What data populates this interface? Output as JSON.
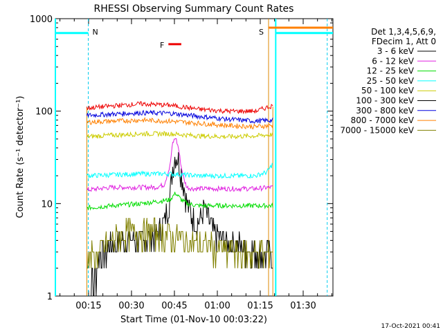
{
  "chart_data": {
    "type": "line",
    "title": "RHESSI Observing Summary Count Rates",
    "xlabel": "Start Time (01-Nov-10 00:03:22)",
    "ylabel": "Count Rate (s⁻¹ detector⁻¹)",
    "x_unit": "minutes after 00:03:22",
    "xlim": [
      0,
      97
    ],
    "ylim": [
      1,
      1000
    ],
    "yscale": "log",
    "x_tick_labels": [
      "00:15",
      "00:30",
      "00:45",
      "01:00",
      "01:15",
      "01:30"
    ],
    "x_tick_values": [
      11.6,
      26.6,
      41.6,
      56.6,
      71.6,
      86.6
    ],
    "y_tick_labels": [
      "1",
      "10",
      "100",
      "1000"
    ],
    "y_tick_values": [
      1,
      10,
      100,
      1000
    ],
    "legend_header": [
      "Det 1,3,4,5,6,9,",
      "FDecim 1, Att 0"
    ],
    "legend_position": "right",
    "series": [
      {
        "name": "3 - 6 keV",
        "color": "#000000",
        "x": [
          11,
          13,
          15,
          17,
          20,
          25,
          30,
          35,
          38,
          40,
          41,
          42,
          43,
          44,
          45,
          46,
          48,
          50,
          52,
          55,
          60,
          65,
          70,
          75,
          76
        ],
        "y": [
          1,
          1.5,
          2.5,
          3,
          3.5,
          4,
          4,
          4.5,
          6,
          12,
          25,
          35,
          30,
          22,
          15,
          10,
          7,
          6,
          9,
          5,
          4,
          3.5,
          3,
          2.8,
          2.8
        ]
      },
      {
        "name": "6 - 12 keV",
        "color": "#e020e0",
        "x": [
          11,
          15,
          20,
          25,
          30,
          35,
          38,
          40,
          41,
          42,
          43,
          44,
          45,
          46,
          48,
          50,
          55,
          60,
          65,
          70,
          75,
          76
        ],
        "y": [
          14,
          14.5,
          15,
          15,
          15,
          15,
          16,
          25,
          45,
          52,
          40,
          25,
          18,
          15,
          14.5,
          14.5,
          14.5,
          14.5,
          14.5,
          14.5,
          15,
          15
        ]
      },
      {
        "name": "12 - 25 keV",
        "color": "#00dd00",
        "x": [
          11,
          20,
          30,
          40,
          42,
          44,
          46,
          50,
          60,
          70,
          76
        ],
        "y": [
          9,
          9.5,
          10,
          11,
          13,
          11,
          10,
          9.5,
          9.5,
          9.5,
          9.5
        ]
      },
      {
        "name": "25 - 50 keV",
        "color": "#00ffff",
        "x": [
          11,
          20,
          30,
          40,
          50,
          60,
          70,
          74,
          76
        ],
        "y": [
          20,
          20.5,
          21,
          21,
          20,
          20,
          20,
          22,
          27
        ]
      },
      {
        "name": "50 - 100 keV",
        "color": "#cccc00",
        "x": [
          11,
          20,
          30,
          40,
          50,
          60,
          70,
          76
        ],
        "y": [
          53,
          55,
          57,
          57,
          54,
          53,
          54,
          56
        ]
      },
      {
        "name": "100 - 300 keV",
        "color": "#000000",
        "shown": false,
        "x": [],
        "y": []
      },
      {
        "name": "300 - 800 keV",
        "color": "#0000dd",
        "x": [
          11,
          20,
          30,
          40,
          50,
          60,
          70,
          76
        ],
        "y": [
          90,
          93,
          96,
          95,
          88,
          82,
          78,
          80
        ]
      },
      {
        "name": "800 - 7000 keV",
        "color": "#ff8000",
        "x": [
          11,
          20,
          30,
          40,
          50,
          60,
          70,
          76
        ],
        "y": [
          76,
          78,
          80,
          78,
          74,
          70,
          68,
          70
        ]
      },
      {
        "name": "7000 - 15000 keV",
        "color": "#808000",
        "x": [
          11,
          15,
          20,
          25,
          30,
          35,
          40,
          45,
          50,
          55,
          60,
          65,
          70,
          75,
          76
        ],
        "y": [
          2.5,
          3,
          4,
          5,
          5,
          5,
          4.5,
          4,
          3.5,
          3.5,
          3,
          3,
          3,
          3,
          3
        ]
      },
      {
        "name": "",
        "color": "#ee0000",
        "label_on_chart": "",
        "x": [
          11,
          20,
          30,
          40,
          50,
          60,
          70,
          76
        ],
        "y": [
          108,
          114,
          120,
          116,
          105,
          100,
          100,
          115
        ]
      }
    ],
    "annotations": [
      {
        "text": "N",
        "color": "#00bbdd",
        "x": 11.5
      },
      {
        "text": "S",
        "color": "#dd8800",
        "x": 74.5
      },
      {
        "text": "F",
        "color": "#ee0000",
        "x": 37.5
      }
    ],
    "attenuator_state_lines": [
      {
        "color": "#00ffff",
        "level": 700,
        "x_start": 0,
        "x_end": 11.5
      },
      {
        "color": "#ff8000",
        "level": 800,
        "x_start": 74.5,
        "x_end": 97
      },
      {
        "color": "#00ffff",
        "level": 700,
        "x_start": 77,
        "x_end": 97
      }
    ],
    "flare_bar": {
      "color": "#ee0000",
      "x_start": 39.5,
      "x_end": 44,
      "level": 530
    },
    "grid": false
  },
  "footer": {
    "timestamp": "17-Oct-2021 00:41"
  }
}
